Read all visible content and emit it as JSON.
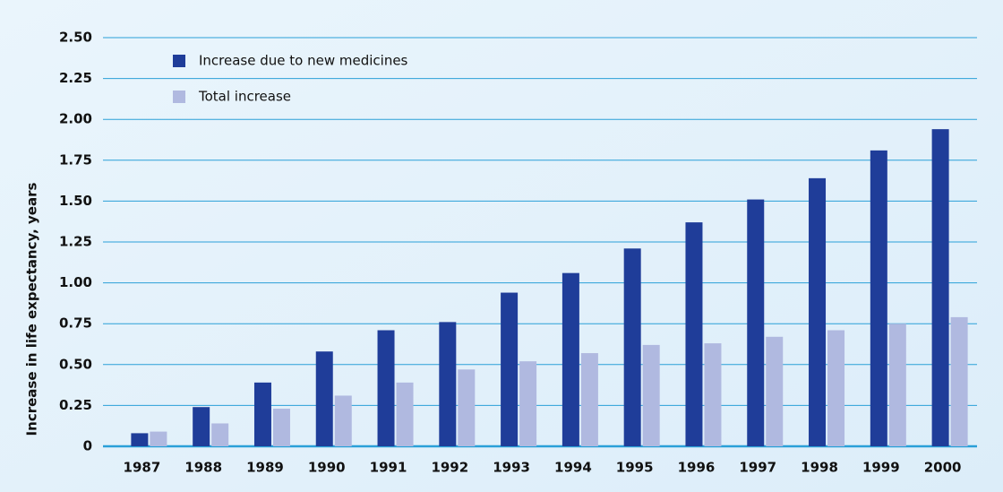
{
  "chart_data": {
    "type": "bar",
    "y_label": "Increase in life expectancy, years",
    "categories": [
      "1987",
      "1988",
      "1989",
      "1990",
      "1991",
      "1992",
      "1993",
      "1994",
      "1995",
      "1996",
      "1997",
      "1998",
      "1999",
      "2000"
    ],
    "series": [
      {
        "name": "Increase due to new medicines",
        "color": "#1f3d99",
        "values": [
          0.08,
          0.24,
          0.39,
          0.58,
          0.71,
          0.76,
          0.94,
          1.06,
          1.21,
          1.37,
          1.51,
          1.64,
          1.81,
          1.94
        ]
      },
      {
        "name": "Total increase",
        "color": "#b0b9e0",
        "values": [
          0.09,
          0.14,
          0.23,
          0.31,
          0.39,
          0.47,
          0.52,
          0.57,
          0.62,
          0.63,
          0.67,
          0.71,
          0.75,
          0.79
        ]
      }
    ],
    "ylim": [
      0,
      2.5
    ],
    "yticks": [
      0,
      0.25,
      {
        "value": 0.5,
        "label": "0.50"
      },
      0.75,
      {
        "value": 1,
        "label": "1.00"
      },
      1.25,
      {
        "value": 1.5,
        "label": "1.50"
      },
      1.75,
      {
        "value": 2,
        "label": "2.00"
      },
      2.25,
      {
        "value": 2.5,
        "label": "2.50"
      }
    ],
    "grid": true,
    "grid_color": "#2aa0d8",
    "legend": "upper-left"
  }
}
